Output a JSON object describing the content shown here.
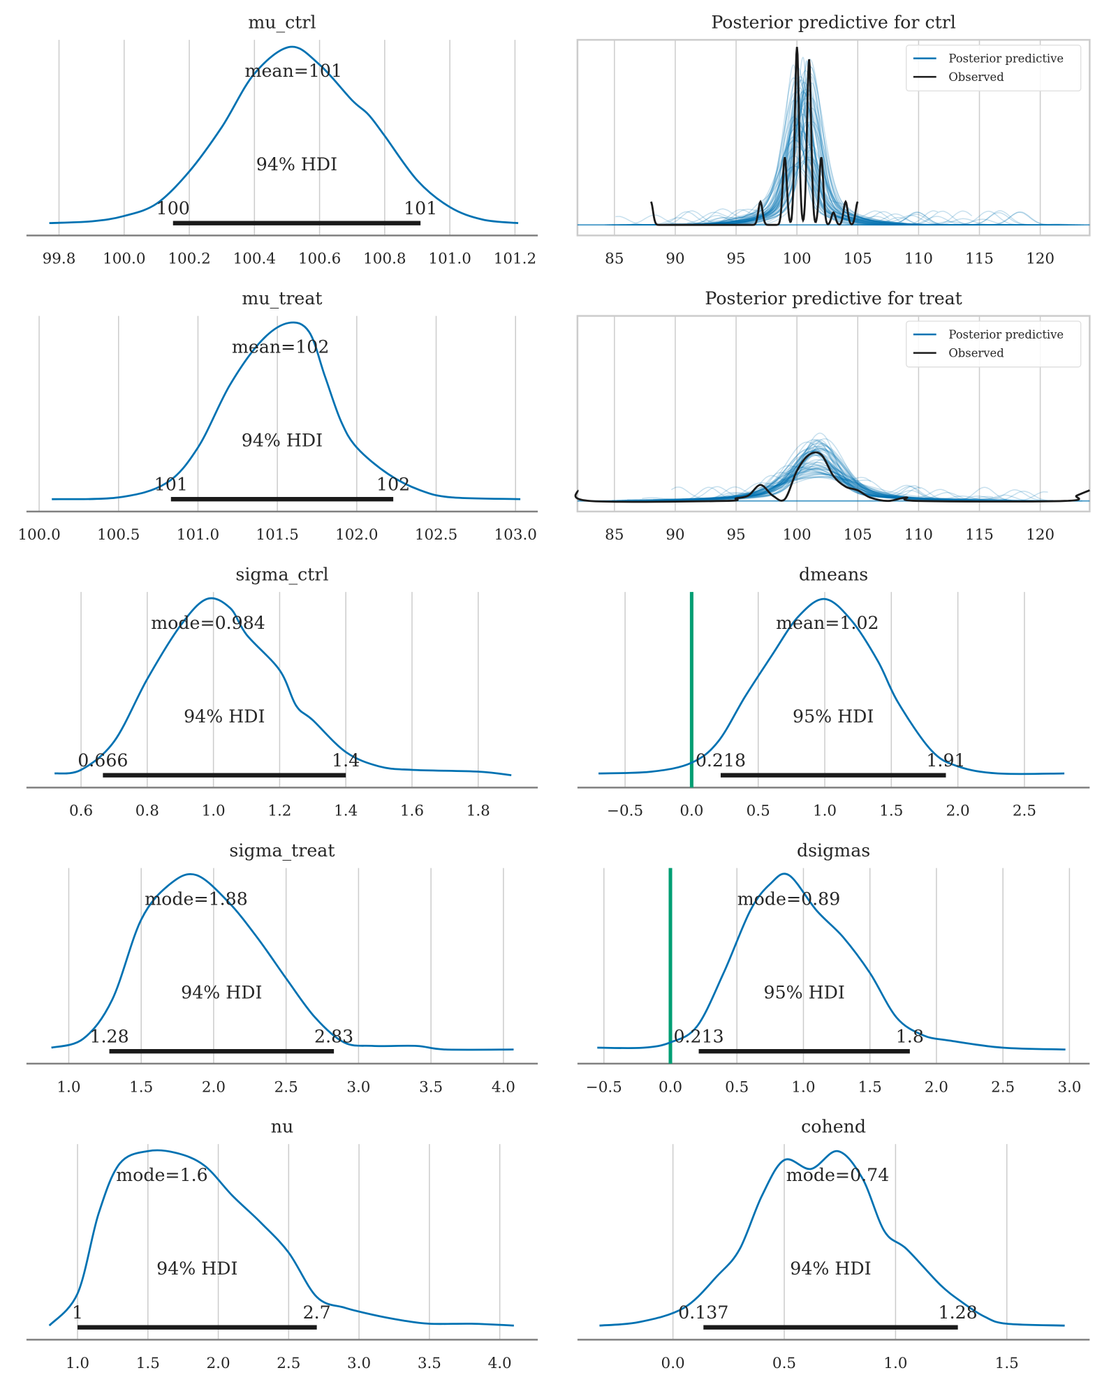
{
  "colors": {
    "kde": "#0072b2",
    "hdi": "#1a1a1a",
    "ref_line": "#009e73",
    "grid": "#cccccc",
    "spine": "#808080",
    "observed": "#1a1a1a",
    "posterior_predictive": "#0072b2"
  },
  "chart_data": [
    {
      "id": "mu_ctrl",
      "type": "line",
      "title": "mu_ctrl",
      "column": 0,
      "row": 0,
      "xlim": [
        99.7,
        101.27
      ],
      "ticks": [
        99.8,
        100.0,
        100.2,
        100.4,
        100.6,
        100.8,
        101.0,
        101.2
      ],
      "tick_labels": [
        "99.8",
        "100.0",
        "100.2",
        "100.4",
        "100.6",
        "100.8",
        "101.0",
        "101.2"
      ],
      "point_estimate": 100.52,
      "point_label": "mean=101",
      "hdi": [
        100.15,
        100.91
      ],
      "hdi_label": "94% HDI",
      "hdi_text": [
        "100",
        "101"
      ],
      "ref_line": null,
      "density": [
        [
          99.77,
          0.01
        ],
        [
          99.9,
          0.02
        ],
        [
          100.0,
          0.05
        ],
        [
          100.1,
          0.12
        ],
        [
          100.2,
          0.3
        ],
        [
          100.3,
          0.55
        ],
        [
          100.4,
          0.85
        ],
        [
          100.51,
          1.0
        ],
        [
          100.6,
          0.9
        ],
        [
          100.7,
          0.7
        ],
        [
          100.75,
          0.62
        ],
        [
          100.8,
          0.5
        ],
        [
          100.9,
          0.25
        ],
        [
          101.0,
          0.1
        ],
        [
          101.1,
          0.03
        ],
        [
          101.21,
          0.01
        ]
      ]
    },
    {
      "id": "ppc_ctrl",
      "type": "line",
      "title": "Posterior predictive for ctrl",
      "column": 1,
      "row": 0,
      "xlim": [
        81.96,
        124.06
      ],
      "ticks": [
        85,
        90,
        95,
        100,
        105,
        110,
        115,
        120
      ],
      "tick_labels": [
        "85",
        "90",
        "95",
        "100",
        "105",
        "110",
        "115",
        "120"
      ],
      "legend": [
        "Posterior predictive",
        "Observed"
      ],
      "legend_position": "top-right",
      "observed_range": [
        88,
        105
      ],
      "observed_peaks": [
        [
          88,
          0.13
        ],
        [
          97,
          0.13
        ],
        [
          99,
          0.38
        ],
        [
          100,
          1.0
        ],
        [
          101,
          0.93
        ],
        [
          102,
          0.38
        ],
        [
          103,
          0.07
        ],
        [
          104,
          0.13
        ],
        [
          105,
          0.13
        ]
      ],
      "posterior_center": 100.5,
      "posterior_peak_range": [
        0.3,
        0.95
      ]
    },
    {
      "id": "mu_treat",
      "type": "line",
      "title": "mu_treat",
      "column": 0,
      "row": 1,
      "xlim": [
        99.92,
        103.14
      ],
      "ticks": [
        100.0,
        100.5,
        101.0,
        101.5,
        102.0,
        102.5,
        103.0
      ],
      "tick_labels": [
        "100.0",
        "100.5",
        "101.0",
        "101.5",
        "102.0",
        "102.5",
        "103.0"
      ],
      "point_estimate": 101.52,
      "point_label": "mean=102",
      "hdi": [
        100.83,
        102.23
      ],
      "hdi_label": "94% HDI",
      "hdi_text": [
        "101",
        "102"
      ],
      "ref_line": null,
      "density": [
        [
          100.08,
          0.01
        ],
        [
          100.5,
          0.02
        ],
        [
          100.8,
          0.1
        ],
        [
          101.0,
          0.3
        ],
        [
          101.2,
          0.65
        ],
        [
          101.4,
          0.9
        ],
        [
          101.57,
          1.0
        ],
        [
          101.7,
          0.95
        ],
        [
          101.8,
          0.7
        ],
        [
          101.9,
          0.45
        ],
        [
          102.0,
          0.3
        ],
        [
          102.2,
          0.15
        ],
        [
          102.4,
          0.06
        ],
        [
          102.6,
          0.02
        ],
        [
          103.03,
          0.01
        ]
      ]
    },
    {
      "id": "ppc_treat",
      "type": "line",
      "title": "Posterior predictive for treat",
      "column": 1,
      "row": 1,
      "xlim": [
        81.96,
        124.06
      ],
      "ticks": [
        85,
        90,
        95,
        100,
        105,
        110,
        115,
        120
      ],
      "tick_labels": [
        "85",
        "90",
        "95",
        "100",
        "105",
        "110",
        "115",
        "120"
      ],
      "legend": [
        "Posterior predictive",
        "Observed"
      ],
      "legend_position": "top-right",
      "observed": [
        [
          81.96,
          0.06
        ],
        [
          83,
          0
        ],
        [
          94,
          0
        ],
        [
          95,
          0.015
        ],
        [
          96,
          0.03
        ],
        [
          97,
          0.09
        ],
        [
          98,
          0.03
        ],
        [
          99,
          0.01
        ],
        [
          100,
          0.17
        ],
        [
          101,
          0.26
        ],
        [
          102,
          0.26
        ],
        [
          103,
          0.14
        ],
        [
          104,
          0.08
        ],
        [
          105,
          0.06
        ],
        [
          106,
          0.02
        ],
        [
          107.5,
          0
        ],
        [
          109,
          0.02
        ],
        [
          110,
          0
        ],
        [
          122,
          0
        ],
        [
          123,
          0.03
        ],
        [
          124.06,
          0.06
        ]
      ],
      "posterior_center": 101.6,
      "posterior_peak_range": [
        0.13,
        0.35
      ]
    },
    {
      "id": "sigma_ctrl",
      "type": "line",
      "title": "sigma_ctrl",
      "column": 0,
      "row": 2,
      "xlim": [
        0.435,
        1.98
      ],
      "ticks": [
        0.6,
        0.8,
        1.0,
        1.2,
        1.4,
        1.6,
        1.8
      ],
      "tick_labels": [
        "0.6",
        "0.8",
        "1.0",
        "1.2",
        "1.4",
        "1.6",
        "1.8"
      ],
      "point_estimate": 0.984,
      "point_label": "mode=0.984",
      "hdi": [
        0.666,
        1.4
      ],
      "hdi_label": "94% HDI",
      "hdi_text": [
        "0.666",
        "1.4"
      ],
      "ref_line": null,
      "density": [
        [
          0.52,
          0.02
        ],
        [
          0.6,
          0.04
        ],
        [
          0.7,
          0.2
        ],
        [
          0.8,
          0.55
        ],
        [
          0.9,
          0.85
        ],
        [
          0.98,
          1
        ],
        [
          1.05,
          0.95
        ],
        [
          1.1,
          0.8
        ],
        [
          1.2,
          0.6
        ],
        [
          1.25,
          0.4
        ],
        [
          1.3,
          0.32
        ],
        [
          1.4,
          0.14
        ],
        [
          1.5,
          0.06
        ],
        [
          1.6,
          0.04
        ],
        [
          1.8,
          0.03
        ],
        [
          1.9,
          0.01
        ]
      ]
    },
    {
      "id": "dmeans",
      "type": "line",
      "title": "dmeans",
      "column": 1,
      "row": 2,
      "xlim": [
        -0.858,
        2.99
      ],
      "ticks": [
        -0.5,
        0.0,
        0.5,
        1.0,
        1.5,
        2.0,
        2.5
      ],
      "tick_labels": [
        "−0.5",
        "0.0",
        "0.5",
        "1.0",
        "1.5",
        "2.0",
        "2.5"
      ],
      "point_estimate": 1.02,
      "point_label": "mean=1.02",
      "hdi": [
        0.218,
        1.91
      ],
      "hdi_label": "95% HDI",
      "hdi_text": [
        "0.218",
        "1.91"
      ],
      "ref_line": 0,
      "density": [
        [
          -0.7,
          0.02
        ],
        [
          -0.3,
          0.03
        ],
        [
          0,
          0.08
        ],
        [
          0.2,
          0.2
        ],
        [
          0.4,
          0.45
        ],
        [
          0.6,
          0.68
        ],
        [
          0.8,
          0.9
        ],
        [
          1.0,
          1
        ],
        [
          1.2,
          0.88
        ],
        [
          1.4,
          0.65
        ],
        [
          1.55,
          0.42
        ],
        [
          1.8,
          0.15
        ],
        [
          2.0,
          0.06
        ],
        [
          2.3,
          0.02
        ],
        [
          2.8,
          0.02
        ]
      ]
    },
    {
      "id": "sigma_treat",
      "type": "line",
      "title": "sigma_treat",
      "column": 0,
      "row": 3,
      "xlim": [
        0.708,
        4.237
      ],
      "ticks": [
        1.0,
        1.5,
        2.0,
        2.5,
        3.0,
        3.5,
        4.0
      ],
      "tick_labels": [
        "1.0",
        "1.5",
        "2.0",
        "2.5",
        "3.0",
        "3.5",
        "4.0"
      ],
      "point_estimate": 1.88,
      "point_label": "mode=1.88",
      "hdi": [
        1.28,
        2.83
      ],
      "hdi_label": "94% HDI",
      "hdi_text": [
        "1.28",
        "2.83"
      ],
      "ref_line": null,
      "density": [
        [
          0.88,
          0.03
        ],
        [
          1.1,
          0.08
        ],
        [
          1.3,
          0.3
        ],
        [
          1.5,
          0.75
        ],
        [
          1.7,
          0.95
        ],
        [
          1.88,
          1
        ],
        [
          2.1,
          0.85
        ],
        [
          2.3,
          0.65
        ],
        [
          2.5,
          0.42
        ],
        [
          2.7,
          0.2
        ],
        [
          2.9,
          0.06
        ],
        [
          3.1,
          0.04
        ],
        [
          3.4,
          0.04
        ],
        [
          3.6,
          0.02
        ],
        [
          4.07,
          0.02
        ]
      ]
    },
    {
      "id": "dsigmas",
      "type": "line",
      "title": "dsigmas",
      "column": 1,
      "row": 3,
      "xlim": [
        -0.699,
        3.152
      ],
      "ticks": [
        -0.5,
        0.0,
        0.5,
        1.0,
        1.5,
        2.0,
        2.5,
        3.0
      ],
      "tick_labels": [
        "−0.5",
        "0.0",
        "0.5",
        "1.0",
        "1.5",
        "2.0",
        "2.5",
        "3.0"
      ],
      "point_estimate": 0.89,
      "point_label": "mode=0.89",
      "hdi": [
        0.213,
        1.8
      ],
      "hdi_label": "95% HDI",
      "hdi_text": [
        "0.213",
        "1.8"
      ],
      "ref_line": 0,
      "density": [
        [
          -0.55,
          0.03
        ],
        [
          -0.2,
          0.03
        ],
        [
          0,
          0.06
        ],
        [
          0.2,
          0.15
        ],
        [
          0.4,
          0.45
        ],
        [
          0.6,
          0.8
        ],
        [
          0.75,
          0.95
        ],
        [
          0.89,
          1
        ],
        [
          1.1,
          0.8
        ],
        [
          1.3,
          0.65
        ],
        [
          1.5,
          0.45
        ],
        [
          1.7,
          0.2
        ],
        [
          1.9,
          0.1
        ],
        [
          2.1,
          0.07
        ],
        [
          2.5,
          0.03
        ],
        [
          2.97,
          0.02
        ]
      ]
    },
    {
      "id": "nu",
      "type": "line",
      "title": "nu",
      "column": 0,
      "row": 4,
      "xlim": [
        0.637,
        4.27
      ],
      "ticks": [
        1.0,
        1.5,
        2.0,
        2.5,
        3.0,
        3.5,
        4.0
      ],
      "tick_labels": [
        "1.0",
        "1.5",
        "2.0",
        "2.5",
        "3.0",
        "3.5",
        "4.0"
      ],
      "point_estimate": 1.6,
      "point_label": "mode=1.6",
      "hdi": [
        1.0,
        2.7
      ],
      "hdi_label": "94% HDI",
      "hdi_text": [
        "1",
        "2.7"
      ],
      "ref_line": null,
      "density": [
        [
          0.8,
          0.02
        ],
        [
          1.0,
          0.2
        ],
        [
          1.15,
          0.65
        ],
        [
          1.3,
          0.93
        ],
        [
          1.5,
          1
        ],
        [
          1.7,
          0.99
        ],
        [
          1.9,
          0.92
        ],
        [
          2.1,
          0.75
        ],
        [
          2.3,
          0.6
        ],
        [
          2.5,
          0.43
        ],
        [
          2.7,
          0.18
        ],
        [
          2.9,
          0.12
        ],
        [
          3.1,
          0.08
        ],
        [
          3.3,
          0.05
        ],
        [
          3.5,
          0.03
        ],
        [
          3.8,
          0.03
        ],
        [
          4.1,
          0.02
        ]
      ]
    },
    {
      "id": "cohend",
      "type": "line",
      "title": "cohend",
      "column": 1,
      "row": 4,
      "xlim": [
        -0.429,
        1.872
      ],
      "ticks": [
        0.0,
        0.5,
        1.0,
        1.5
      ],
      "tick_labels": [
        "0.0",
        "0.5",
        "1.0",
        "1.5"
      ],
      "point_estimate": 0.74,
      "point_label": "mode=0.74",
      "hdi": [
        0.137,
        1.28
      ],
      "hdi_label": "94% HDI",
      "hdi_text": [
        "0.137",
        "1.28"
      ],
      "ref_line": null,
      "density": [
        [
          -0.33,
          0.02
        ],
        [
          -0.15,
          0.04
        ],
        [
          0.05,
          0.12
        ],
        [
          0.2,
          0.3
        ],
        [
          0.3,
          0.45
        ],
        [
          0.4,
          0.75
        ],
        [
          0.5,
          0.95
        ],
        [
          0.62,
          0.9
        ],
        [
          0.74,
          1
        ],
        [
          0.85,
          0.85
        ],
        [
          0.95,
          0.55
        ],
        [
          1.05,
          0.45
        ],
        [
          1.2,
          0.25
        ],
        [
          1.3,
          0.15
        ],
        [
          1.4,
          0.07
        ],
        [
          1.5,
          0.03
        ],
        [
          1.76,
          0.02
        ]
      ]
    }
  ]
}
